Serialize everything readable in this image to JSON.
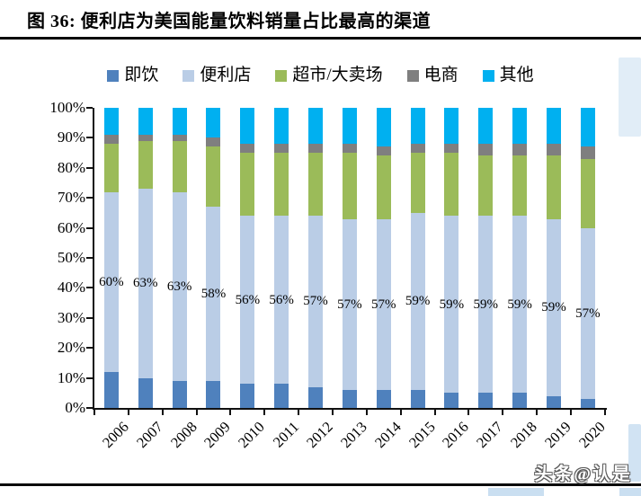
{
  "title": "图 36: 便利店为美国能量饮料销量占比最高的渠道",
  "watermark": {
    "text": "头条@认是"
  },
  "chart_data": {
    "type": "bar",
    "stacked": true,
    "percent_stacked": true,
    "title": "图 36: 便利店为美国能量饮料销量占比最高的渠道",
    "xlabel": "",
    "ylabel": "",
    "ylim": [
      0,
      100
    ],
    "grid": false,
    "legend_position": "top",
    "y_ticks": [
      "100%",
      "90%",
      "80%",
      "70%",
      "60%",
      "50%",
      "40%",
      "30%",
      "20%",
      "10%",
      "0%"
    ],
    "categories": [
      "2006",
      "2007",
      "2008",
      "2009",
      "2010",
      "2011",
      "2012",
      "2013",
      "2014",
      "2015",
      "2016",
      "2017",
      "2018",
      "2019",
      "2020"
    ],
    "series": [
      {
        "key": "ready-to-drink",
        "name": "即饮",
        "color": "#4F81BD",
        "values": [
          12,
          10,
          9,
          9,
          8,
          8,
          7,
          6,
          6,
          6,
          5,
          5,
          5,
          4,
          3
        ]
      },
      {
        "key": "convenience-store",
        "name": "便利店",
        "color": "#BACDE6",
        "labels_shown": true,
        "values": [
          60,
          63,
          63,
          58,
          56,
          56,
          57,
          57,
          57,
          59,
          59,
          59,
          59,
          59,
          57
        ]
      },
      {
        "key": "supermarket-hypermarket",
        "name": "超市/大卖场",
        "color": "#9BBB59",
        "values": [
          16,
          16,
          17,
          20,
          21,
          21,
          21,
          22,
          21,
          20,
          21,
          20,
          20,
          21,
          23
        ]
      },
      {
        "key": "ecommerce",
        "name": "电商",
        "color": "#7F7F7F",
        "values": [
          3,
          2,
          2,
          3,
          3,
          3,
          3,
          3,
          3,
          3,
          3,
          4,
          4,
          4,
          4
        ]
      },
      {
        "key": "other",
        "name": "其他",
        "color": "#00B0F0",
        "values": [
          9,
          9,
          9,
          10,
          12,
          12,
          12,
          12,
          13,
          12,
          12,
          12,
          12,
          12,
          13
        ]
      }
    ],
    "bar_value_labels": [
      "60%",
      "63%",
      "63%",
      "58%",
      "56%",
      "56%",
      "57%",
      "57%",
      "57%",
      "59%",
      "59%",
      "59%",
      "59%",
      "59%",
      "57%"
    ]
  }
}
